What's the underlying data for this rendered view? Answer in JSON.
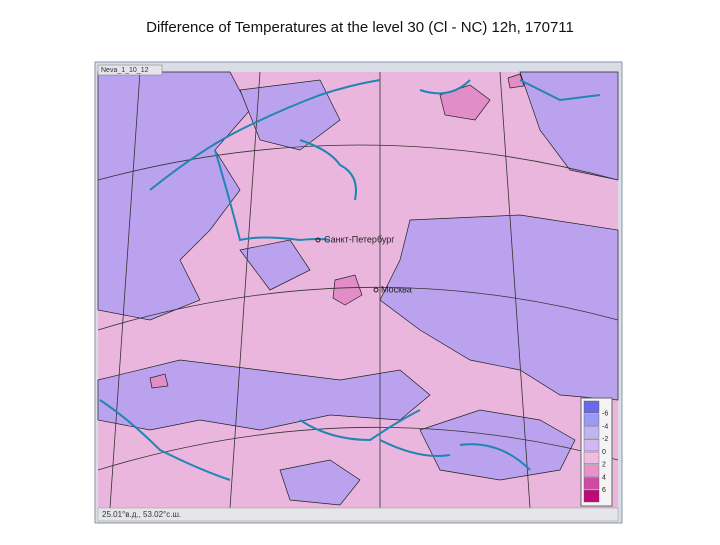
{
  "title": "Difference of Temperatures at the level 30 (Cl - NC) 12h, 170711",
  "window_title": "Neva_1_10_12",
  "cities": [
    {
      "label": "Санкт-Петербург"
    },
    {
      "label": "Москва"
    }
  ],
  "legend": {
    "labels": [
      -6,
      -4,
      -2,
      0,
      2,
      4,
      6
    ],
    "colors": [
      "#6a6ae8",
      "#9a9af2",
      "#c0b4f4",
      "#d2b8f2",
      "#f0bde2",
      "#e892cc",
      "#d04aa4",
      "#c0087a"
    ]
  },
  "status": "25.01°в.д., 53.02°с.ш."
}
